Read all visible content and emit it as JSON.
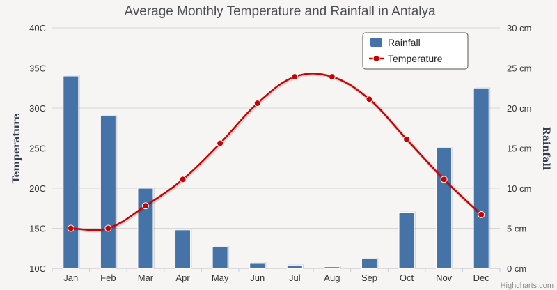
{
  "chart_data": {
    "type": "bar+line",
    "title": "Average Monthly Temperature and Rainfall in Antalya",
    "categories": [
      "Jan",
      "Feb",
      "Mar",
      "Apr",
      "May",
      "Jun",
      "Jul",
      "Aug",
      "Sep",
      "Oct",
      "Nov",
      "Dec"
    ],
    "series": [
      {
        "name": "Rainfall",
        "type": "bar",
        "axis": "right",
        "values": [
          24.0,
          19.0,
          10.0,
          4.8,
          2.7,
          0.7,
          0.4,
          0.2,
          1.2,
          7.0,
          15.0,
          22.5
        ]
      },
      {
        "name": "Temperature",
        "type": "line",
        "axis": "left",
        "values": [
          15,
          15,
          17.8,
          21.1,
          25.6,
          30.6,
          33.9,
          33.9,
          31.1,
          26.1,
          21.1,
          16.7
        ]
      }
    ],
    "y_left": {
      "label": "Temperature",
      "min": 10,
      "max": 40,
      "ticks": [
        "10C",
        "15C",
        "20C",
        "25C",
        "30C",
        "35C",
        "40C"
      ]
    },
    "y_right": {
      "label": "Rainfall",
      "min": 0,
      "max": 30,
      "ticks": [
        "0 cm",
        "5 cm",
        "10 cm",
        "15 cm",
        "20 cm",
        "25 cm",
        "30 cm"
      ]
    },
    "grid": true,
    "legend_position": "top-right",
    "credits": "Highcharts.com",
    "colors": {
      "rainfall": "#4572a7",
      "temperature": "#cc0000"
    }
  }
}
